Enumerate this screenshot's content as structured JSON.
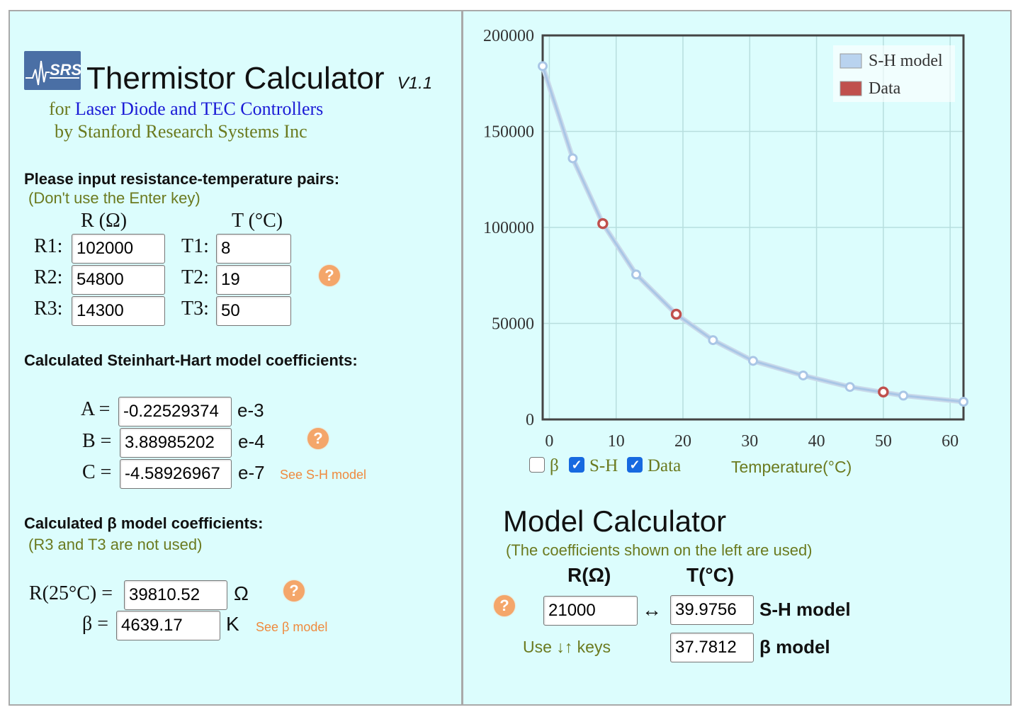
{
  "app": {
    "title": "Thermistor Calculator",
    "version": "V1.1",
    "subtitle_prefix": "for ",
    "subtitle_link": "Laser Diode and TEC Controllers",
    "byline": "by Stanford Research Systems Inc",
    "logo_text": "SRS"
  },
  "inputs_section": {
    "heading": "Please input resistance-temperature pairs:",
    "note": "(Don't use the Enter key)",
    "col_r": "R (Ω)",
    "col_t": "T (°C)",
    "rows": [
      {
        "r_label": "R1:",
        "r_value": "102000",
        "t_label": "T1:",
        "t_value": "8"
      },
      {
        "r_label": "R2:",
        "r_value": "54800",
        "t_label": "T2:",
        "t_value": "19"
      },
      {
        "r_label": "R3:",
        "r_value": "14300",
        "t_label": "T3:",
        "t_value": "50"
      }
    ],
    "help": "?"
  },
  "sh_section": {
    "heading": "Calculated Steinhart-Hart model coefficients:",
    "a_label": "A =",
    "a_value": "-0.22529374",
    "a_exp": "e-3",
    "b_label": "B =",
    "b_value": "3.88985202",
    "b_exp": "e-4",
    "c_label": "C =",
    "c_value": "-4.58926967",
    "c_exp": "e-7",
    "link": "See S-H model",
    "help": "?"
  },
  "beta_section": {
    "heading": "Calculated β model coefficients:",
    "note": "(R3 and T3 are not used)",
    "r25_label": "R(25°C) =",
    "r25_value": "39810.52",
    "r25_unit": "Ω",
    "beta_label": "β =",
    "beta_value": "4639.17",
    "beta_unit": "K",
    "link": "See β model",
    "help": "?"
  },
  "chart_controls": {
    "beta_label": "β",
    "beta_checked": false,
    "sh_label": "S-H",
    "sh_checked": true,
    "data_label": "Data",
    "data_checked": true,
    "xlabel": "Temperature(°C)"
  },
  "model_calc": {
    "title": "Model Calculator",
    "note": "(The coefficients shown on the left are used)",
    "col_r": "R(Ω)",
    "col_t": "T(°C)",
    "r_value": "21000",
    "arrow": "↔",
    "sh_t_value": "39.9756",
    "sh_label": "S-H model",
    "beta_t_value": "37.7812",
    "beta_label": "β model",
    "keys_hint": "Use ↓↑ keys",
    "help": "?"
  },
  "colors": {
    "background": "#dcfdfd",
    "sh_line": "#b9d3ef",
    "data_point": "#c0504d",
    "olive_text": "#6b7a1f",
    "link_blue": "#1a1ad6",
    "help_orange": "#f4a66a"
  },
  "chart_data": {
    "type": "line",
    "xlabel": "Temperature(°C)",
    "ylabel": "",
    "xlim": [
      -1,
      62
    ],
    "ylim": [
      0,
      200000
    ],
    "x_ticks": [
      "0",
      "10",
      "20",
      "30",
      "40",
      "50",
      "60"
    ],
    "y_ticks": [
      "0",
      "50000",
      "100000",
      "150000",
      "200000"
    ],
    "legend": [
      "S-H model",
      "Data"
    ],
    "legend_position": "top-right",
    "grid": true,
    "series": [
      {
        "name": "S-H model",
        "x": [
          -1,
          3.5,
          8,
          13,
          19,
          24.5,
          30.5,
          38,
          45,
          53,
          62
        ],
        "y": [
          184000,
          136000,
          102000,
          75500,
          54800,
          41300,
          30500,
          22900,
          16900,
          12400,
          9200
        ]
      },
      {
        "name": "Data",
        "x": [
          8,
          19,
          50
        ],
        "y": [
          102000,
          54800,
          14300
        ]
      }
    ]
  }
}
